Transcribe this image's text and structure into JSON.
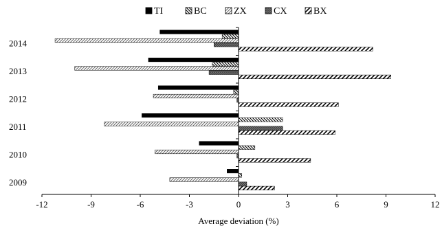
{
  "chart_data": {
    "type": "bar",
    "orientation": "horizontal",
    "categories": [
      "2009",
      "2010",
      "2011",
      "2012",
      "2013",
      "2014"
    ],
    "series": [
      {
        "name": "TI",
        "values": [
          -0.7,
          -2.4,
          -5.9,
          -4.9,
          -5.5,
          -4.8
        ],
        "pattern": "solid"
      },
      {
        "name": "BC",
        "values": [
          0.2,
          1.0,
          2.7,
          -0.3,
          -1.6,
          -1.0
        ],
        "pattern": "backslash"
      },
      {
        "name": "ZX",
        "values": [
          -4.2,
          -5.1,
          -8.2,
          -5.2,
          -10.0,
          -11.2
        ],
        "pattern": "slash-light"
      },
      {
        "name": "CX",
        "values": [
          0.5,
          -0.1,
          2.7,
          -0.1,
          -1.8,
          -1.5
        ],
        "pattern": "crosshatch"
      },
      {
        "name": "BX",
        "values": [
          2.2,
          4.4,
          5.9,
          6.1,
          9.3,
          8.2
        ],
        "pattern": "slash-bold"
      }
    ],
    "xlabel": "Average deviation (%)",
    "ylabel": "",
    "title": "",
    "xlim": [
      -12,
      12
    ],
    "xticks": [
      -12,
      -9,
      -6,
      -3,
      0,
      3,
      6,
      9,
      12
    ],
    "xtick_labels": [
      "-12",
      "-9",
      "-6",
      "-3",
      "0",
      "3",
      "6",
      "9",
      "12"
    ],
    "grid": false,
    "legend_position": "top"
  }
}
